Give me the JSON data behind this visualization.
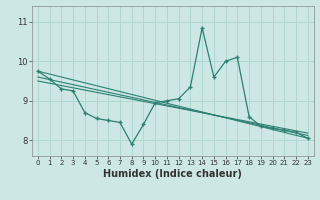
{
  "xlabel": "Humidex (Indice chaleur)",
  "background_color": "#cde8e4",
  "line_color": "#2d7f72",
  "grid_color": "#b0d8d0",
  "xlim": [
    -0.5,
    23.5
  ],
  "ylim": [
    7.6,
    11.4
  ],
  "yticks": [
    8,
    9,
    10,
    11
  ],
  "xticks": [
    0,
    1,
    2,
    3,
    4,
    5,
    6,
    7,
    8,
    9,
    10,
    11,
    12,
    13,
    14,
    15,
    16,
    17,
    18,
    19,
    20,
    21,
    22,
    23
  ],
  "line1_x": [
    0,
    1,
    2,
    3,
    4,
    5,
    6,
    7,
    8,
    9,
    10,
    11,
    12,
    13,
    14,
    15,
    16,
    17,
    18,
    19,
    20,
    21,
    22,
    23
  ],
  "line1_y": [
    9.75,
    9.55,
    9.3,
    9.25,
    8.7,
    8.55,
    8.5,
    8.45,
    7.9,
    8.4,
    8.95,
    9.0,
    9.05,
    9.35,
    10.85,
    9.6,
    10.0,
    10.1,
    8.6,
    8.35,
    8.3,
    8.25,
    8.2,
    8.05
  ],
  "line2_x": [
    0,
    23
  ],
  "line2_y": [
    9.75,
    8.05
  ],
  "line3_x": [
    0,
    23
  ],
  "line3_y": [
    9.6,
    8.12
  ],
  "line4_x": [
    0,
    23
  ],
  "line4_y": [
    9.5,
    8.18
  ]
}
